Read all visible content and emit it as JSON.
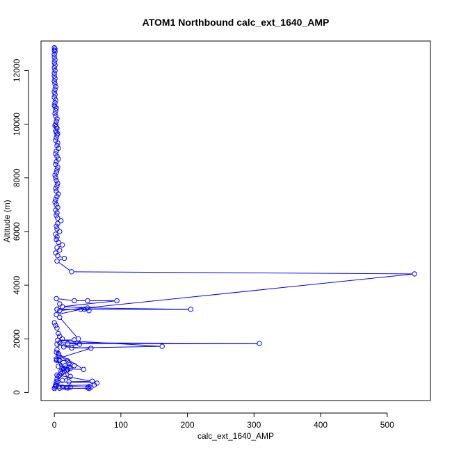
{
  "chart_data": {
    "type": "line",
    "title": "ATOM1 Northbound calc_ext_1640_AMP",
    "xlabel": "calc_ext_1640_AMP",
    "ylabel": "Altitude (m)",
    "xlim": [
      -20,
      565
    ],
    "ylim": [
      -300,
      13100
    ],
    "x_ticks": [
      0,
      100,
      200,
      300,
      400,
      500
    ],
    "y_ticks": [
      0,
      2000,
      4000,
      6000,
      8000,
      10000,
      12000
    ],
    "grid": false,
    "legend": "none",
    "color": "#0000ff",
    "marker": "open-circle",
    "series": [
      {
        "x": [
          0,
          1,
          0,
          1,
          0,
          0,
          1,
          0,
          1,
          0,
          1,
          0,
          0,
          1,
          0,
          1,
          2,
          1,
          0,
          1,
          0,
          2,
          1,
          0,
          1,
          3,
          2,
          1,
          2,
          4,
          3,
          2,
          1,
          3,
          4,
          2,
          3,
          5,
          4,
          3,
          2,
          5,
          4,
          6,
          3,
          2,
          4,
          6,
          3,
          2,
          5,
          4,
          3,
          1,
          2,
          3,
          5,
          4,
          2,
          3,
          6,
          4,
          2,
          1,
          3,
          5,
          2,
          4,
          3,
          5,
          10,
          5,
          3,
          4,
          8,
          2,
          4,
          3,
          6,
          12,
          4,
          8,
          2,
          5,
          15,
          4,
          26,
          541,
          8,
          4,
          205,
          50,
          12,
          94,
          50,
          30,
          3,
          8,
          4,
          45,
          52,
          40,
          3,
          8,
          36,
          30,
          5,
          162,
          26,
          4,
          8,
          308,
          20,
          38,
          14,
          55,
          3,
          8,
          20,
          30,
          6,
          12,
          14,
          44,
          6,
          22,
          3,
          8,
          15,
          22,
          57,
          4,
          10,
          6,
          24,
          12,
          5,
          64,
          60,
          3,
          55,
          52,
          50,
          52,
          8,
          20,
          24,
          18,
          12,
          6,
          2
        ],
        "y": [
          12850,
          12800,
          12750,
          12700,
          12600,
          12500,
          12400,
          12300,
          12200,
          12100,
          12000,
          11900,
          11800,
          11700,
          11600,
          11500,
          11400,
          11300,
          11200,
          11100,
          11000,
          10900,
          10800,
          10700,
          10650,
          10600,
          10500,
          10400,
          10300,
          10200,
          10100,
          10000,
          9950,
          9900,
          9850,
          9750,
          9700,
          9650,
          9600,
          9500,
          9400,
          9300,
          9200,
          9100,
          9000,
          8900,
          8800,
          8700,
          8600,
          8500,
          8400,
          8300,
          8200,
          8100,
          8000,
          7900,
          7800,
          7700,
          7600,
          7500,
          7400,
          7300,
          7200,
          7100,
          7000,
          6900,
          6800,
          6700,
          6600,
          6500,
          6400,
          6300,
          6200,
          6100,
          6000,
          5900,
          5800,
          5700,
          5600,
          5500,
          5400,
          5300,
          5200,
          5100,
          5000,
          4900,
          4500,
          4420,
          3050,
          3100,
          3100,
          3150,
          3200,
          3420,
          3420,
          3420,
          3500,
          3300,
          3100,
          3100,
          3050,
          3100,
          2900,
          2800,
          2000,
          1960,
          1950,
          1720,
          1660,
          1800,
          1850,
          1830,
          1820,
          1800,
          1700,
          1650,
          1250,
          1200,
          1180,
          1000,
          980,
          900,
          880,
          860,
          1450,
          1100,
          1500,
          1200,
          800,
          400,
          420,
          650,
          800,
          1200,
          600,
          450,
          400,
          350,
          280,
          250,
          200,
          220,
          180,
          150,
          160,
          170,
          200,
          180,
          200,
          220,
          240
        ]
      },
      {
        "x": [
          0,
          2,
          4,
          6,
          8,
          12,
          4,
          6,
          3,
          16,
          22,
          24,
          20,
          18,
          12,
          10,
          8,
          6,
          4,
          3,
          2,
          1,
          0
        ],
        "y": [
          2600,
          2500,
          2400,
          2200,
          2100,
          2000,
          1600,
          1400,
          1200,
          1000,
          950,
          900,
          850,
          800,
          750,
          700,
          650,
          600,
          500,
          400,
          300,
          200,
          150
        ]
      }
    ]
  }
}
